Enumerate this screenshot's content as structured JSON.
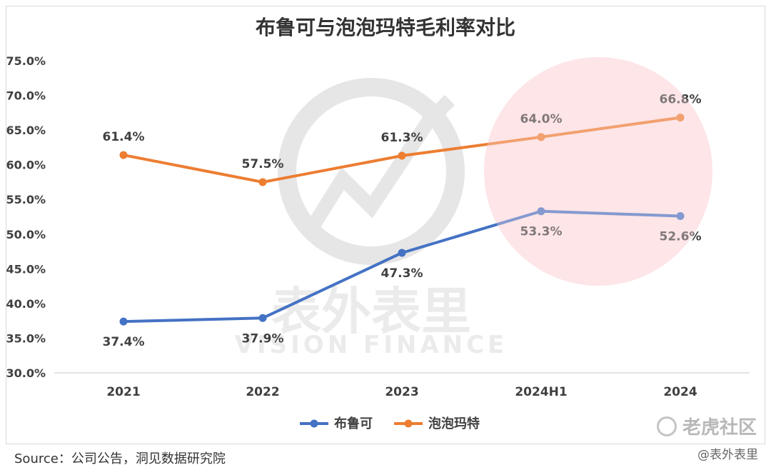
{
  "chart_data": {
    "type": "line",
    "title": "布鲁可与泡泡玛特毛利率对比",
    "categories": [
      "2021",
      "2022",
      "2023",
      "2024H1",
      "2024"
    ],
    "y_ticks": [
      "30.0%",
      "35.0%",
      "40.0%",
      "45.0%",
      "50.0%",
      "55.0%",
      "60.0%",
      "65.0%",
      "70.0%",
      "75.0%"
    ],
    "ylim": [
      30,
      75
    ],
    "grid": false,
    "legend": "bottom-center",
    "series": [
      {
        "name": "布鲁可",
        "color": "#4472c4",
        "values": [
          37.4,
          37.9,
          47.3,
          53.3,
          52.6
        ],
        "labels": [
          "37.4%",
          "37.9%",
          "47.3%",
          "53.3%",
          "52.6%"
        ]
      },
      {
        "name": "泡泡玛特",
        "color": "#ed7d31",
        "values": [
          61.4,
          57.5,
          61.3,
          64.0,
          66.8
        ],
        "labels": [
          "61.4%",
          "57.5%",
          "61.3%",
          "64.0%",
          "66.8%"
        ]
      }
    ]
  },
  "watermark": {
    "cn": "表外表里",
    "en": "VISION FINANCE"
  },
  "source": "Source：公司公告，洞见数据研究院",
  "corner_logo": "老虎社区",
  "corner_handle": "@表外表里",
  "colors": {
    "highlight": "#fde3e6",
    "axis": "#d9d9d9",
    "label": "#404040"
  }
}
